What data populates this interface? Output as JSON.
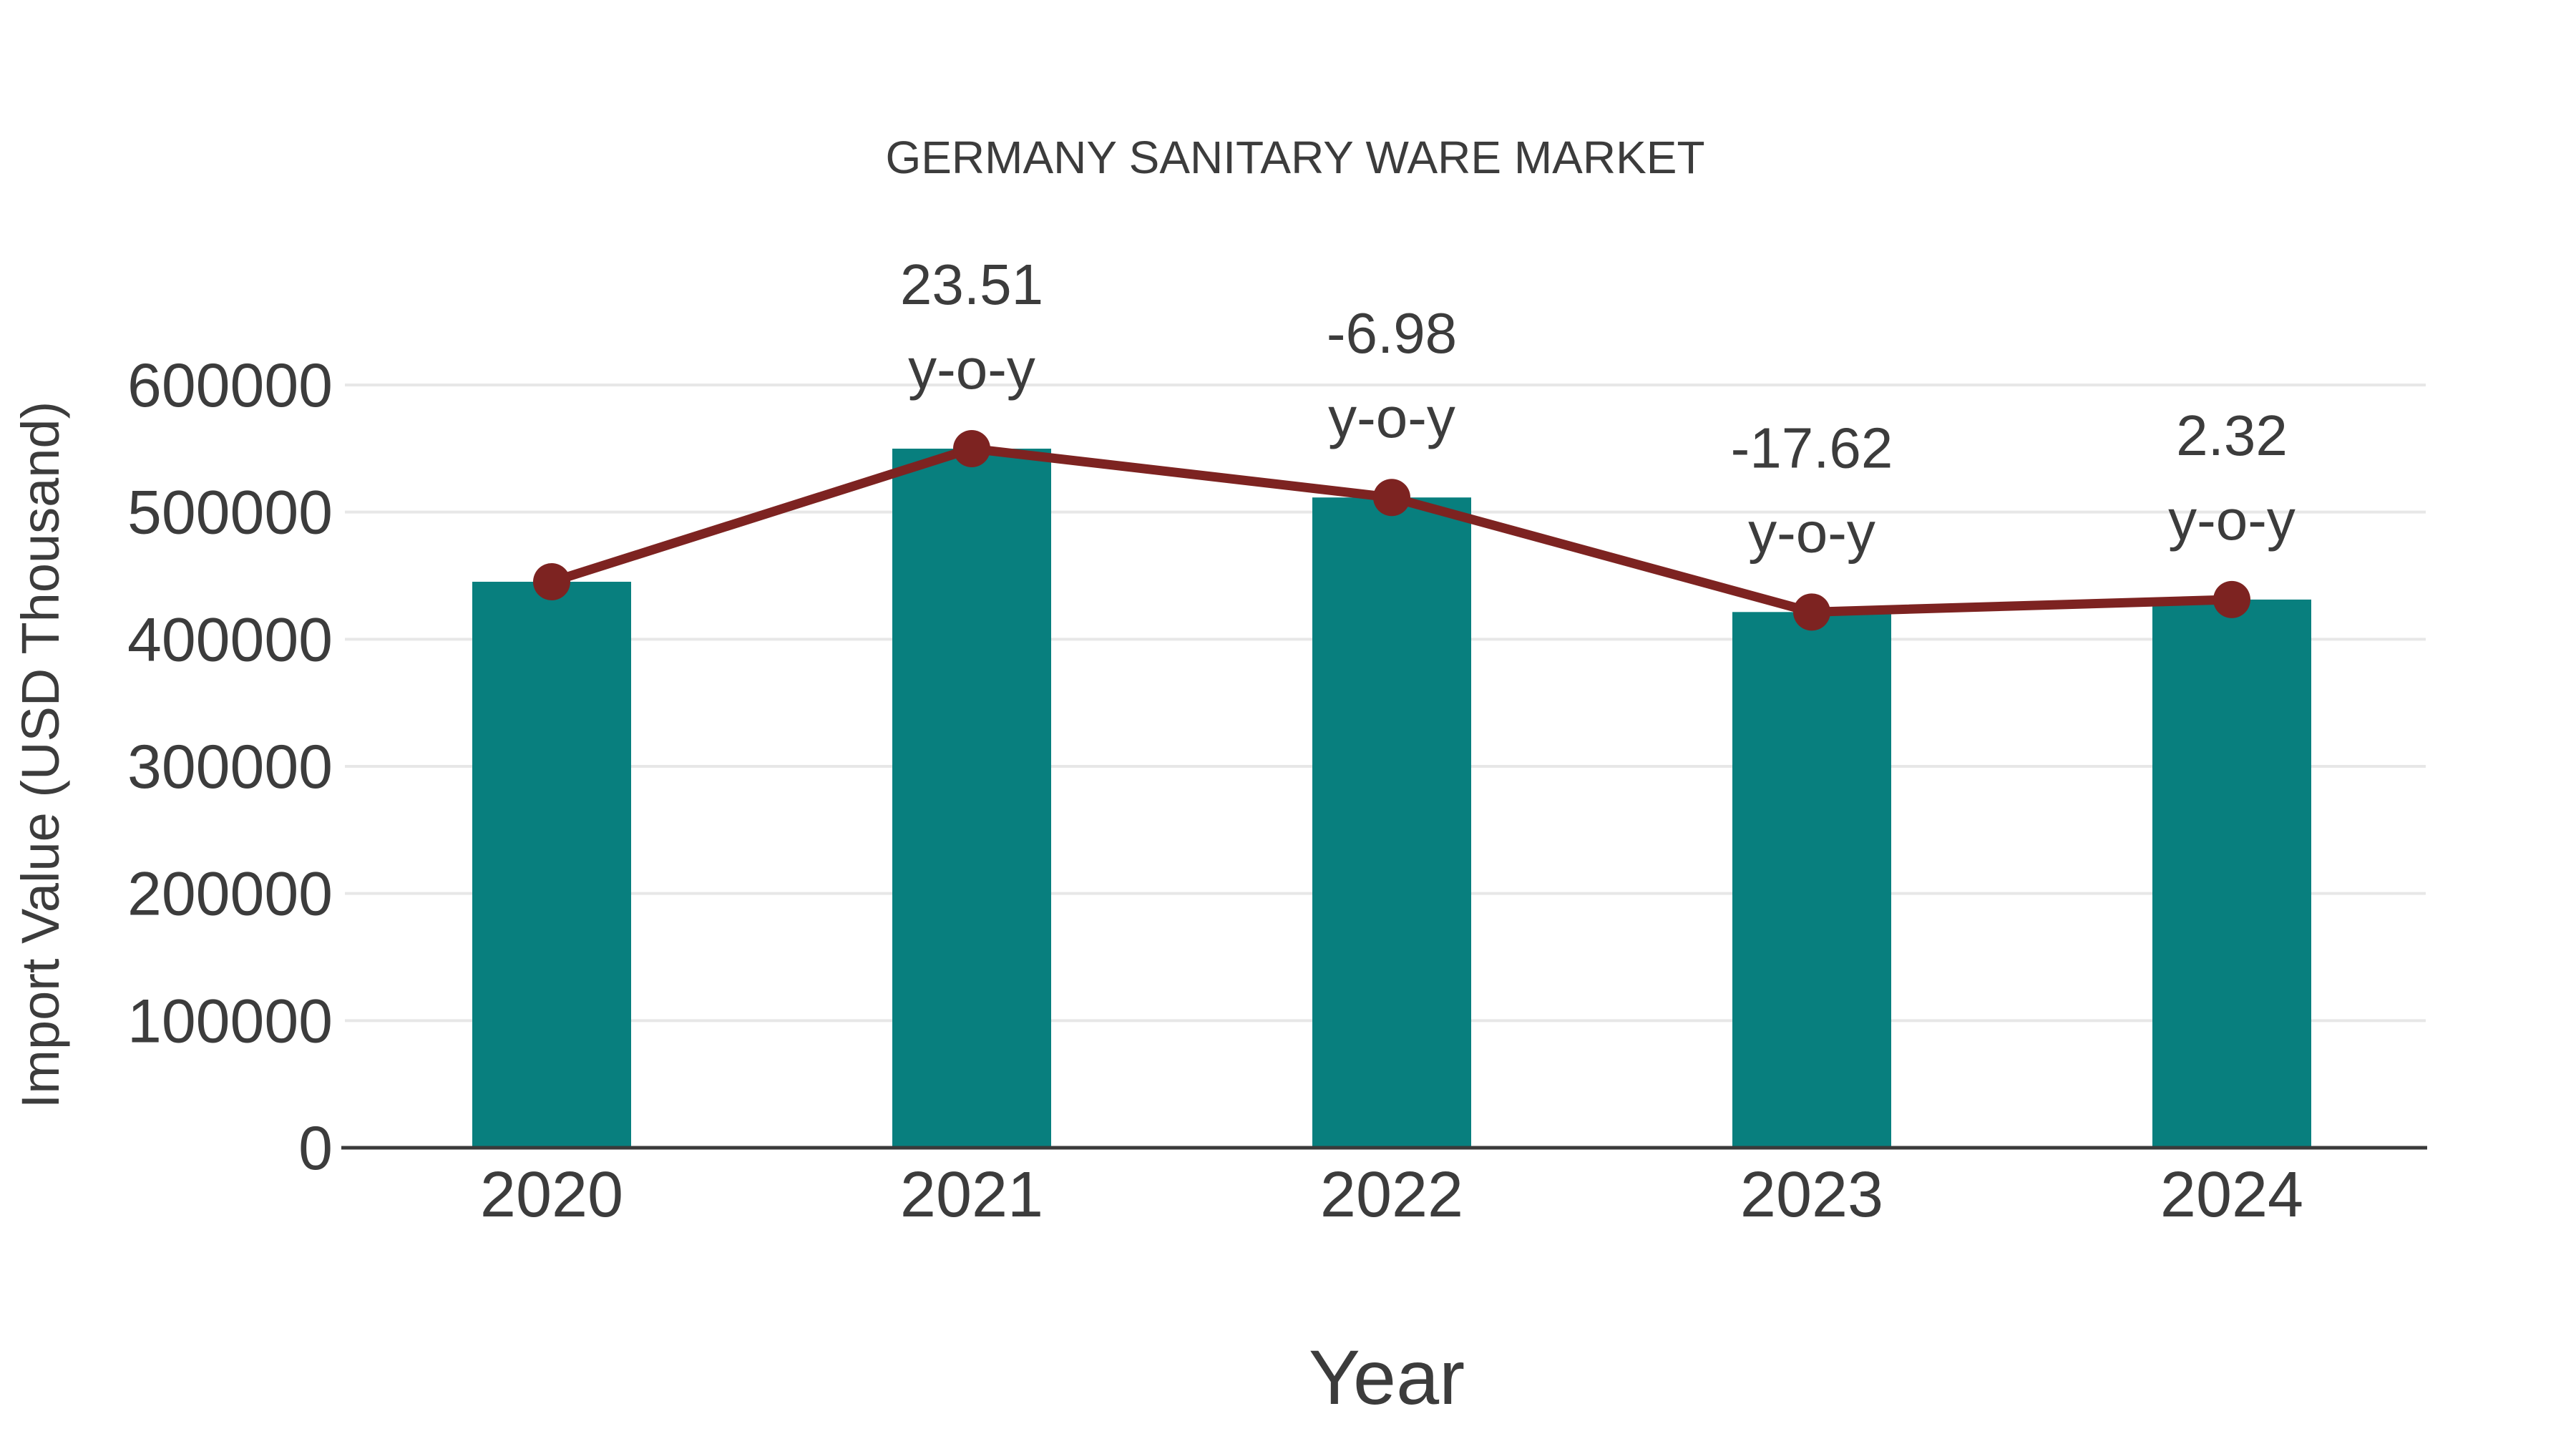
{
  "chart_data": {
    "type": "bar+line",
    "title": "GERMANY SANITARY WARE MARKET",
    "xlabel": "Year",
    "ylabel": "Import Value (USD Thousand)",
    "categories": [
      "2020",
      "2021",
      "2022",
      "2023",
      "2024"
    ],
    "series": [
      {
        "name": "Import Value",
        "type": "bar",
        "values": [
          445200,
          549900,
          511500,
          421400,
          431200
        ]
      },
      {
        "name": "y-o-y change (%)",
        "type": "line",
        "values": [
          null,
          23.51,
          -6.98,
          -17.62,
          2.32
        ]
      }
    ],
    "annotations": [
      {
        "category_index": 1,
        "value_text": "23.51",
        "suffix_text": "y-o-y"
      },
      {
        "category_index": 2,
        "value_text": "-6.98",
        "suffix_text": "y-o-y"
      },
      {
        "category_index": 3,
        "value_text": "-17.62",
        "suffix_text": "y-o-y"
      },
      {
        "category_index": 4,
        "value_text": "2.32",
        "suffix_text": "y-o-y"
      }
    ],
    "yticks": [
      "0",
      "100000",
      "200000",
      "300000",
      "400000",
      "500000",
      "600000"
    ],
    "ytick_values": [
      0,
      100000,
      200000,
      300000,
      400000,
      500000,
      600000
    ],
    "ylim": [
      0,
      600000
    ],
    "grid": "horizontal",
    "legend": "none",
    "colors": {
      "bar": "#087F7E",
      "line": "#7D2321",
      "marker": "#7D2321",
      "text": "#3C3C3C",
      "gridline": "#E7E7E7",
      "axis_line": "#3A3A3A",
      "background": "#FFFFFF"
    }
  }
}
